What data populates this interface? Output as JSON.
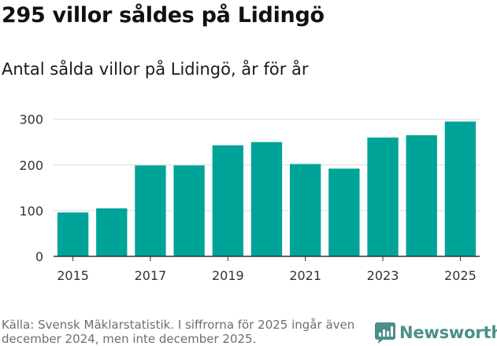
{
  "title": "295 villor såldes på Lidingö",
  "subtitle": "Antal sålda villor på Lidingö, år för år",
  "source": "Källa: Svensk Mäklarstatistik. I siffrorna för 2025 ingår även december 2024, men inte december 2025.",
  "brand": {
    "name": "Newsworthy",
    "icon": "newsworthy-logo-icon",
    "color": "#4a8f8a"
  },
  "colors": {
    "bar": "#00a398",
    "grid": "#dedede",
    "axis": "#333333"
  },
  "chart_data": {
    "type": "bar",
    "title": "295 villor såldes på Lidingö",
    "subtitle": "Antal sålda villor på Lidingö, år för år",
    "xlabel": "",
    "ylabel": "",
    "categories": [
      "2015",
      "2016",
      "2017",
      "2018",
      "2019",
      "2020",
      "2021",
      "2022",
      "2023",
      "2024",
      "2025"
    ],
    "values": [
      96,
      105,
      199,
      199,
      243,
      250,
      202,
      192,
      260,
      265,
      295
    ],
    "x_tick_labels": [
      "2015",
      "2017",
      "2019",
      "2021",
      "2023",
      "2025"
    ],
    "y_ticks": [
      0,
      100,
      200,
      300
    ],
    "ylim": [
      0,
      320
    ],
    "grid": true,
    "legend": "none"
  }
}
